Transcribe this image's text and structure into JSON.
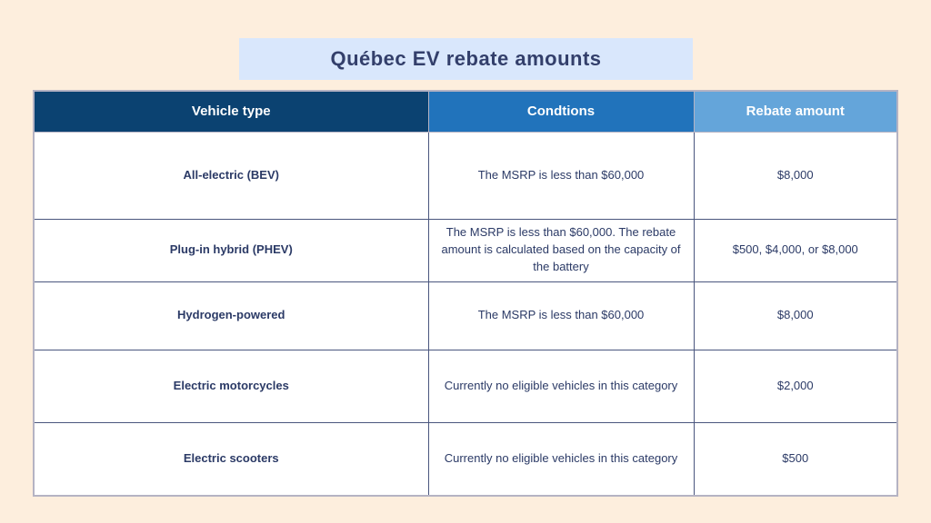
{
  "page": {
    "background_color": "#fdeedd",
    "title": "Québec EV rebate amounts",
    "title_banner_color": "#d9e7fc",
    "title_text_color": "#333f6b"
  },
  "table": {
    "header_colors": [
      "#0b4271",
      "#2173bb",
      "#64a5da"
    ],
    "grid_line_color": "#4a567e",
    "outer_border_color": "#b5b3c3",
    "headers": [
      {
        "label": "Vehicle type"
      },
      {
        "label": "Condtions"
      },
      {
        "label": "Rebate amount"
      }
    ],
    "rows": [
      {
        "vehicle": "All-electric (BEV)",
        "conditions": "The MSRP is less than $60,000",
        "rebate": "$8,000"
      },
      {
        "vehicle": "Plug-in hybrid (PHEV)",
        "conditions": "The MSRP is less than $60,000. The rebate amount is calculated based on the capacity of the battery",
        "rebate": "$500, $4,000, or $8,000"
      },
      {
        "vehicle": "Hydrogen-powered",
        "conditions": "The MSRP is less than $60,000",
        "rebate": "$8,000"
      },
      {
        "vehicle": "Electric motorcycles",
        "conditions": "Currently no eligible vehicles in this category",
        "rebate": "$2,000"
      },
      {
        "vehicle": "Electric scooters",
        "conditions": "Currently no eligible vehicles in this category",
        "rebate": "$500"
      }
    ]
  },
  "chart_data": {
    "type": "table",
    "title": "Québec EV rebate amounts",
    "columns": [
      "Vehicle type",
      "Condtions",
      "Rebate amount"
    ],
    "rows": [
      [
        "All-electric (BEV)",
        "The MSRP is less than $60,000",
        "$8,000"
      ],
      [
        "Plug-in hybrid (PHEV)",
        "The MSRP is less than $60,000. The rebate amount is calculated based on the capacity of the battery",
        "$500, $4,000, or $8,000"
      ],
      [
        "Hydrogen-powered",
        "The MSRP is less than $60,000",
        "$8,000"
      ],
      [
        "Electric motorcycles",
        "Currently no eligible vehicles in this category",
        "$2,000"
      ],
      [
        "Electric scooters",
        "Currently no eligible vehicles in this category",
        "$500"
      ]
    ]
  }
}
